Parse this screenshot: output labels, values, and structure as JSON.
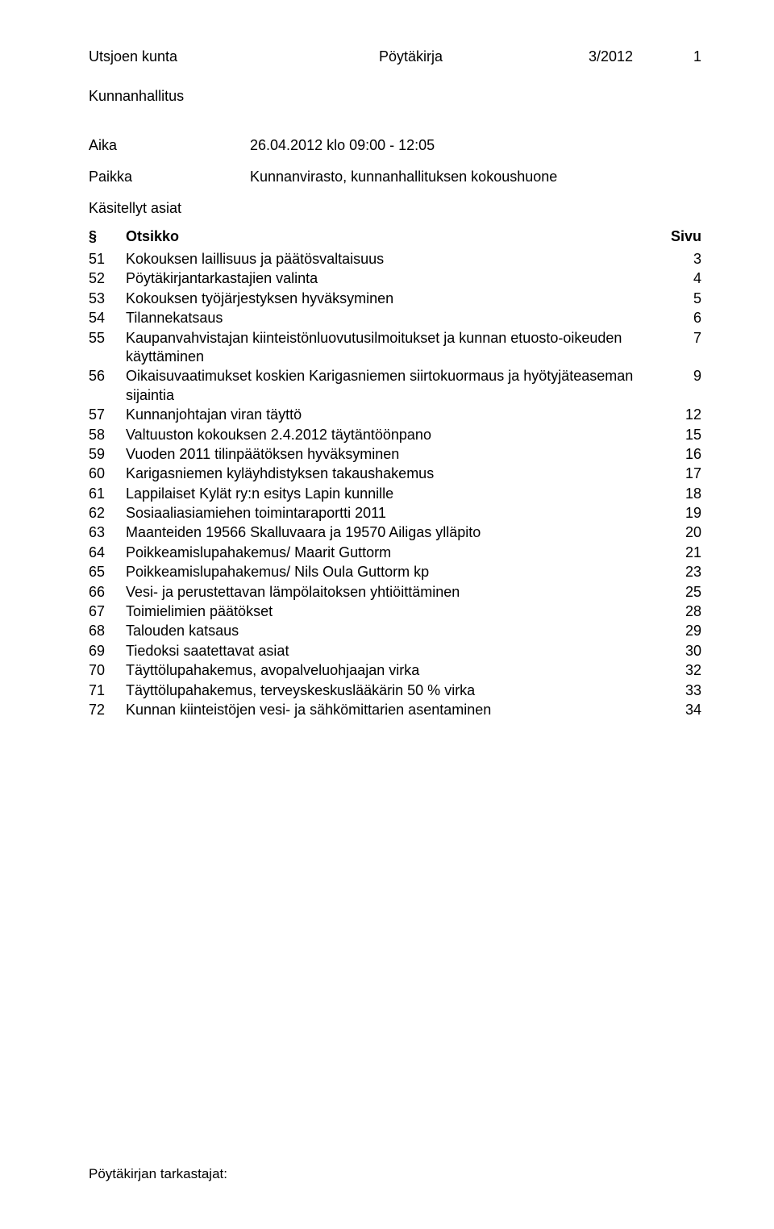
{
  "header": {
    "org": "Utsjoen kunta",
    "doc_type": "Pöytäkirja",
    "doc_number": "3/2012",
    "page_no": "1"
  },
  "body_name": "Kunnanhallitus",
  "meta": {
    "aika_label": "Aika",
    "aika_value": "26.04.2012 klo 09:00 - 12:05",
    "paikka_label": "Paikka",
    "paikka_value": "Kunnanvirasto, kunnanhallituksen kokoushuone"
  },
  "kasitellyt_label": "Käsitellyt asiat",
  "toc_head": {
    "sec": "§",
    "title": "Otsikko",
    "page": "Sivu"
  },
  "toc": [
    {
      "sec": "51",
      "title": "Kokouksen laillisuus ja päätösvaltaisuus",
      "page": "3"
    },
    {
      "sec": "52",
      "title": "Pöytäkirjantarkastajien valinta",
      "page": "4"
    },
    {
      "sec": "53",
      "title": "Kokouksen työjärjestyksen hyväksyminen",
      "page": "5"
    },
    {
      "sec": "54",
      "title": "Tilannekatsaus",
      "page": "6"
    },
    {
      "sec": "55",
      "title": "Kaupanvahvistajan kiinteistönluovutusilmoitukset ja kunnan etuosto-oikeuden käyttäminen",
      "page": "7"
    },
    {
      "sec": "56",
      "title": "Oikaisuvaatimukset koskien Karigasniemen siirtokuormaus ja hyötyjäteaseman sijaintia",
      "page": "9"
    },
    {
      "sec": "57",
      "title": "Kunnanjohtajan viran täyttö",
      "page": "12"
    },
    {
      "sec": "58",
      "title": "Valtuuston kokouksen 2.4.2012 täytäntöönpano",
      "page": "15"
    },
    {
      "sec": "59",
      "title": "Vuoden 2011 tilinpäätöksen hyväksyminen",
      "page": "16"
    },
    {
      "sec": "60",
      "title": "Karigasniemen kyläyhdistyksen takaushakemus",
      "page": "17"
    },
    {
      "sec": "61",
      "title": "Lappilaiset Kylät ry:n esitys Lapin kunnille",
      "page": "18"
    },
    {
      "sec": "62",
      "title": "Sosiaaliasiamiehen toimintaraportti 2011",
      "page": "19"
    },
    {
      "sec": "63",
      "title": "Maanteiden 19566 Skalluvaara ja 19570 Ailigas ylläpito",
      "page": "20"
    },
    {
      "sec": "64",
      "title": "Poikkeamislupahakemus/ Maarit Guttorm",
      "page": "21"
    },
    {
      "sec": "65",
      "title": "Poikkeamislupahakemus/ Nils Oula Guttorm kp",
      "page": "23"
    },
    {
      "sec": "66",
      "title": "Vesi- ja perustettavan lämpölaitoksen yhtiöittäminen",
      "page": "25"
    },
    {
      "sec": "67",
      "title": "Toimielimien päätökset",
      "page": "28"
    },
    {
      "sec": "68",
      "title": "Talouden katsaus",
      "page": "29"
    },
    {
      "sec": "69",
      "title": "Tiedoksi saatettavat asiat",
      "page": "30"
    },
    {
      "sec": "70",
      "title": "Täyttölupahakemus, avopalveluohjaajan virka",
      "page": "32"
    },
    {
      "sec": "71",
      "title": "Täyttölupahakemus, terveyskeskuslääkärin 50 % virka",
      "page": "33"
    },
    {
      "sec": "72",
      "title": "Kunnan kiinteistöjen vesi- ja sähkömittarien asentaminen",
      "page": "34"
    }
  ],
  "footer": "Pöytäkirjan tarkastajat:"
}
